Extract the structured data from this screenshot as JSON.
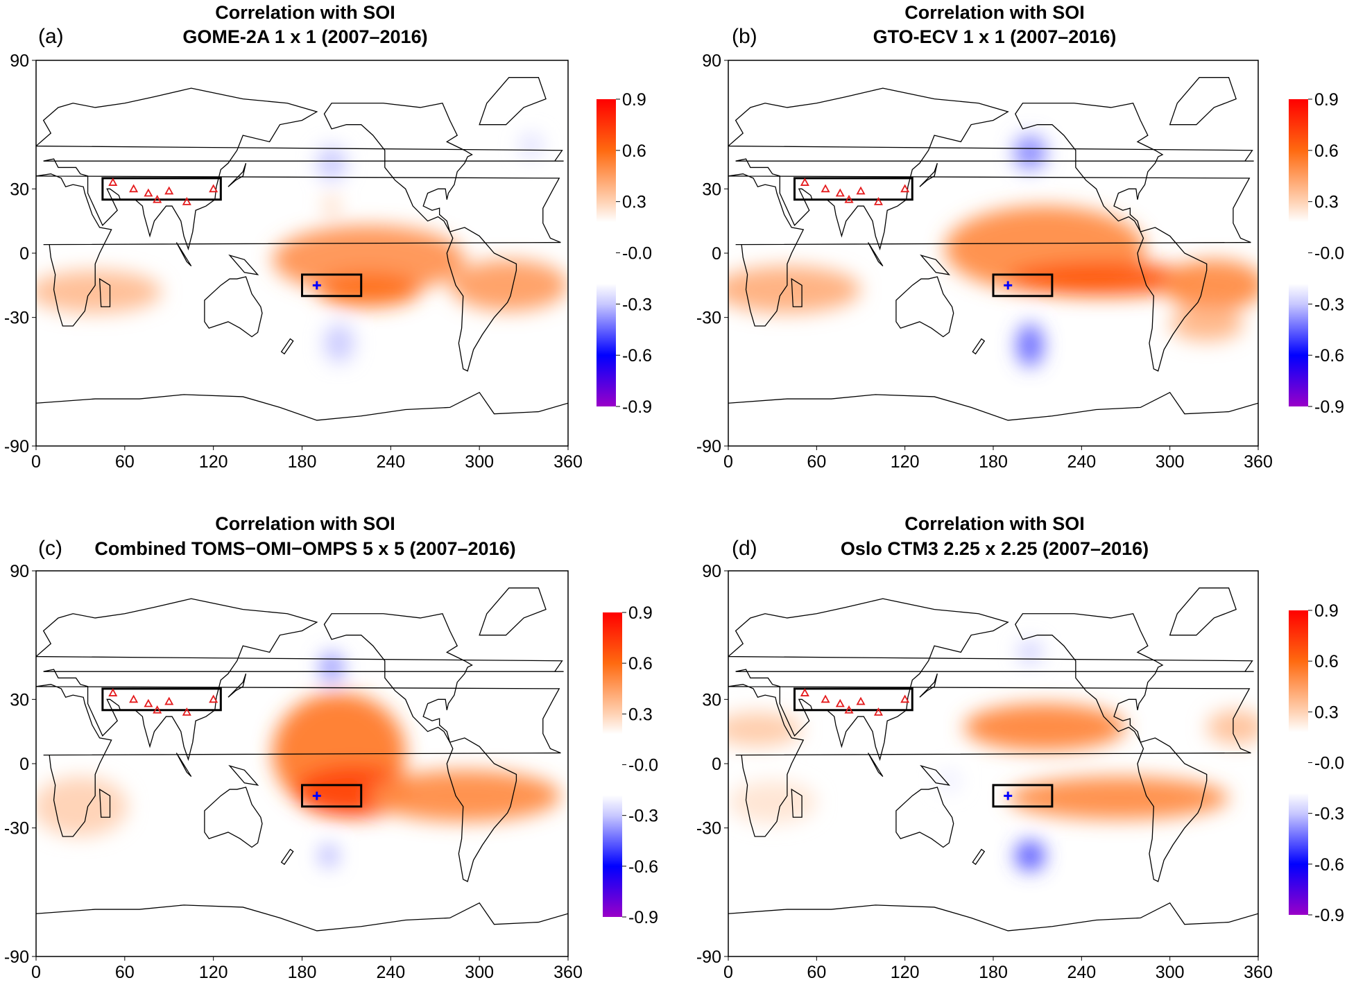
{
  "chart_data": {
    "type": "heatmap",
    "xlim": [
      0,
      360
    ],
    "ylim": [
      -90,
      90
    ],
    "xticks": [
      0,
      60,
      120,
      180,
      240,
      300,
      360
    ],
    "yticks": [
      90,
      30,
      0,
      -30,
      -90
    ],
    "colorbar": {
      "ticks": [
        "0.9",
        "0.6",
        "0.3",
        "-0.0",
        "-0.3",
        "-0.6",
        "-0.9"
      ],
      "range": [
        -0.9,
        0.9
      ],
      "stops": [
        {
          "v": -0.9,
          "c": "#9a00c8"
        },
        {
          "v": -0.6,
          "c": "#0000ff"
        },
        {
          "v": -0.3,
          "c": "#c8c8ff"
        },
        {
          "v": -0.18,
          "c": "#ffffff"
        },
        {
          "v": 0.18,
          "c": "#ffffff"
        },
        {
          "v": 0.3,
          "c": "#ffd2b4"
        },
        {
          "v": 0.6,
          "c": "#ff6a10"
        },
        {
          "v": 0.9,
          "c": "#ff0000"
        }
      ]
    },
    "regions": [
      {
        "name": "himalaya-box",
        "lon": [
          45,
          125
        ],
        "lat": [
          25,
          35
        ]
      },
      {
        "name": "pacific-box",
        "lon": [
          180,
          220
        ],
        "lat": [
          -20,
          -10
        ]
      }
    ],
    "stations": [
      [
        52,
        33
      ],
      [
        66,
        30
      ],
      [
        76,
        28
      ],
      [
        82,
        25
      ],
      [
        90,
        29
      ],
      [
        102,
        24
      ],
      [
        120,
        30
      ]
    ],
    "station_color": "#e41a1c",
    "reference_point": {
      "lon": 190,
      "lat": -15,
      "color": "#0000ff"
    },
    "panels": [
      {
        "label": "(a)",
        "title": "Correlation with SOI",
        "subtitle": "GOME-2A 1 x 1 (2007–2016)",
        "blobs": [
          {
            "lon": 225,
            "lat": -3,
            "rlon": 65,
            "rlat": 16,
            "r": 0.48
          },
          {
            "lon": 225,
            "lat": -17,
            "rlon": 35,
            "rlat": 8,
            "r": 0.58
          },
          {
            "lon": 40,
            "lat": -18,
            "rlon": 45,
            "rlat": 10,
            "r": 0.36
          },
          {
            "lon": 320,
            "lat": -15,
            "rlon": 40,
            "rlat": 12,
            "r": 0.45
          },
          {
            "lon": 200,
            "lat": 22,
            "rlon": 5,
            "rlat": 5,
            "r": 0.3
          },
          {
            "lon": 200,
            "lat": 42,
            "rlon": 10,
            "rlat": 8,
            "r": -0.3
          },
          {
            "lon": 205,
            "lat": -42,
            "rlon": 10,
            "rlat": 9,
            "r": -0.3
          },
          {
            "lon": 335,
            "lat": 50,
            "rlon": 8,
            "rlat": 6,
            "r": -0.25
          }
        ]
      },
      {
        "label": "(b)",
        "title": "Correlation with SOI",
        "subtitle": "GTO-ECV 1 x 1 (2007–2016)",
        "blobs": [
          {
            "lon": 215,
            "lat": 2,
            "rlon": 68,
            "rlat": 20,
            "r": 0.5
          },
          {
            "lon": 255,
            "lat": -12,
            "rlon": 65,
            "rlat": 8,
            "r": 0.65
          },
          {
            "lon": 40,
            "lat": -17,
            "rlon": 50,
            "rlat": 11,
            "r": 0.4
          },
          {
            "lon": 330,
            "lat": -15,
            "rlon": 35,
            "rlat": 12,
            "r": 0.5
          },
          {
            "lon": 325,
            "lat": -33,
            "rlon": 25,
            "rlat": 8,
            "r": 0.38
          },
          {
            "lon": 205,
            "lat": 47,
            "rlon": 11,
            "rlat": 8,
            "r": -0.4
          },
          {
            "lon": 205,
            "lat": -43,
            "rlon": 9,
            "rlat": 10,
            "r": -0.45
          }
        ]
      },
      {
        "label": "(c)",
        "title": "Correlation with SOI",
        "subtitle": "Combined TOMS−OMI−OMPS 5 x 5 (2007–2016)",
        "blobs": [
          {
            "lon": 205,
            "lat": 5,
            "rlon": 45,
            "rlat": 28,
            "r": 0.55
          },
          {
            "lon": 215,
            "lat": -13,
            "rlon": 40,
            "rlat": 12,
            "r": 0.7
          },
          {
            "lon": 290,
            "lat": -15,
            "rlon": 65,
            "rlat": 12,
            "r": 0.5
          },
          {
            "lon": 30,
            "lat": -20,
            "rlon": 32,
            "rlat": 14,
            "r": 0.3
          },
          {
            "lon": 200,
            "lat": 45,
            "rlon": 8,
            "rlat": 7,
            "r": -0.38
          },
          {
            "lon": 198,
            "lat": -43,
            "rlon": 6,
            "rlat": 5,
            "r": -0.35
          }
        ]
      },
      {
        "label": "(d)",
        "title": "Correlation with SOI",
        "subtitle": "Oslo CTM3 2.25 x 2.25 (2007–2016)",
        "blobs": [
          {
            "lon": 215,
            "lat": 17,
            "rlon": 55,
            "rlat": 11,
            "r": 0.52
          },
          {
            "lon": 20,
            "lat": 16,
            "rlon": 30,
            "rlat": 8,
            "r": 0.32
          },
          {
            "lon": 345,
            "lat": 17,
            "rlon": 20,
            "rlat": 8,
            "r": 0.35
          },
          {
            "lon": 265,
            "lat": -16,
            "rlon": 75,
            "rlat": 10,
            "r": 0.5
          },
          {
            "lon": 30,
            "lat": -18,
            "rlon": 30,
            "rlat": 10,
            "r": 0.25
          },
          {
            "lon": 205,
            "lat": 52,
            "rlon": 8,
            "rlat": 5,
            "r": -0.3
          },
          {
            "lon": 205,
            "lat": -43,
            "rlon": 10,
            "rlat": 7,
            "r": -0.48
          },
          {
            "lon": 150,
            "lat": -8,
            "rlon": 8,
            "rlat": 5,
            "r": -0.22
          }
        ]
      }
    ]
  }
}
